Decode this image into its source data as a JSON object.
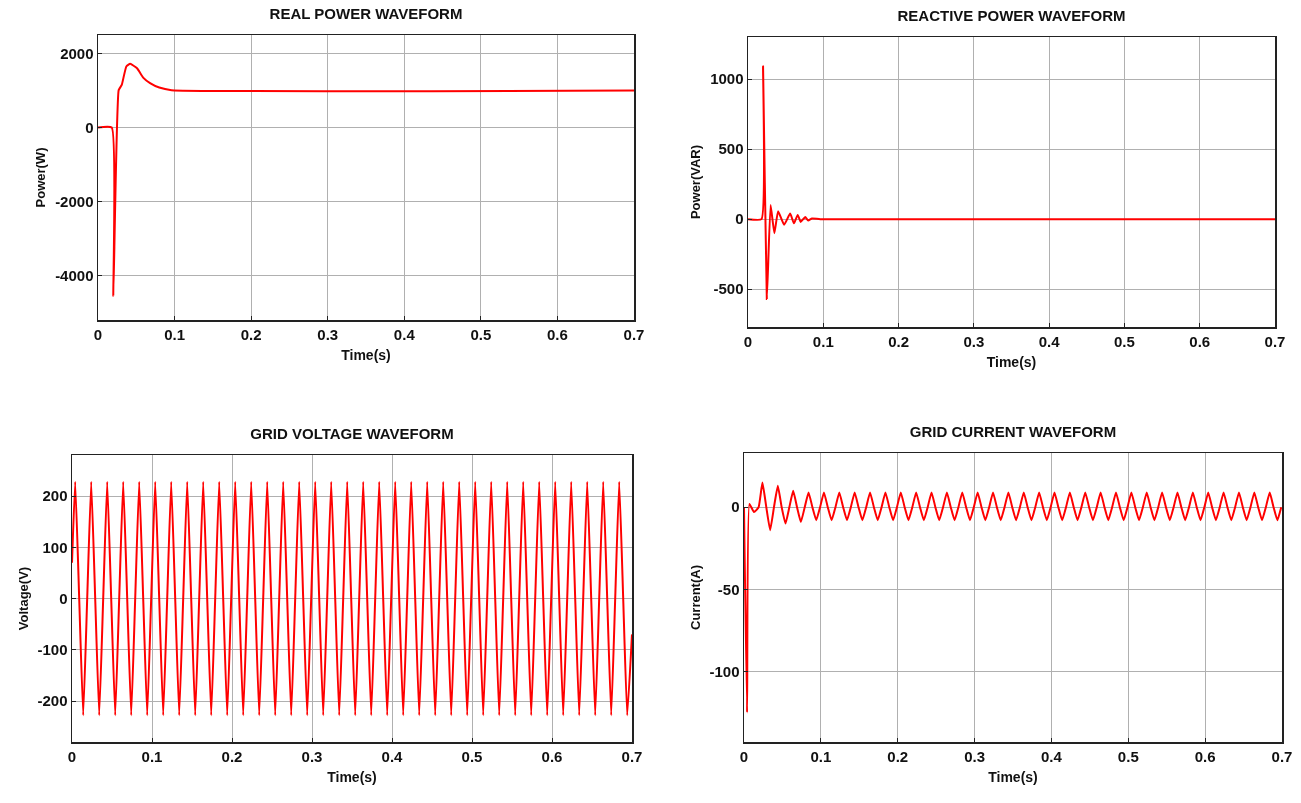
{
  "chart_data": [
    {
      "type": "line",
      "title": "REAL POWER WAVEFORM",
      "xlabel": "Time(s)",
      "ylabel": "Power(W)",
      "x": [
        0,
        0.018,
        0.02,
        0.027,
        0.031,
        0.037,
        0.042,
        0.051,
        0.059,
        0.068,
        0.08,
        0.096,
        0.7
      ],
      "series": [
        {
          "color": "#ff0000",
          "values": [
            0,
            0,
            -4550,
            1010,
            1150,
            1650,
            1720,
            1600,
            1350,
            1200,
            1080,
            1010,
            1000
          ]
        }
      ],
      "xlim": [
        0,
        0.7
      ],
      "xticks": [
        0,
        0.1,
        0.2,
        0.3,
        0.4,
        0.5,
        0.6,
        0.7
      ],
      "ylim": [
        -5200,
        2500
      ],
      "yticks": [
        -4000,
        -2000,
        0,
        2000
      ],
      "grid": true
    },
    {
      "type": "line",
      "title": "REACTIVE POWER WAVEFORM",
      "xlabel": "Time(s)",
      "ylabel": "Power(VAR)",
      "x": [
        0,
        0.018,
        0.02,
        0.025,
        0.03,
        0.035,
        0.04,
        0.048,
        0.056,
        0.061,
        0.066,
        0.07,
        0.076,
        0.08,
        0.085,
        0.096,
        0.7
      ],
      "series": [
        {
          "color": "#ff0000",
          "values": [
            0,
            0,
            1090,
            -570,
            100,
            -100,
            57,
            -40,
            40,
            -30,
            30,
            -20,
            15,
            -10,
            5,
            0,
            0
          ]
        }
      ],
      "xlim": [
        0,
        0.7
      ],
      "xticks": [
        0,
        0.1,
        0.2,
        0.3,
        0.4,
        0.5,
        0.6,
        0.7
      ],
      "ylim": [
        -770,
        1300
      ],
      "yticks": [
        -500,
        0,
        500,
        1000
      ],
      "grid": true
    },
    {
      "type": "line",
      "title": "GRID VOLTAGE WAVEFORM",
      "xlabel": "Time(s)",
      "ylabel": "Voltage(V)",
      "x": [
        0,
        0.004,
        0.009,
        0.014,
        0.019,
        0.024,
        0.029,
        0.034,
        0.039,
        0.044,
        0.049,
        0.054,
        0.059,
        0.064,
        0.069,
        0.074,
        0.079,
        0.084,
        0.089,
        0.094,
        0.099,
        0.104,
        0.109,
        0.114,
        0.119,
        0.124,
        0.129,
        0.134,
        0.139,
        0.144,
        0.149,
        0.154,
        0.159,
        0.164,
        0.169,
        0.174,
        0.179,
        0.184,
        0.189,
        0.194,
        0.199,
        0.204,
        0.209,
        0.214,
        0.219,
        0.224,
        0.229,
        0.234,
        0.239,
        0.244,
        0.249,
        0.254,
        0.259,
        0.264,
        0.269,
        0.274,
        0.279,
        0.284,
        0.289,
        0.294,
        0.299,
        0.304,
        0.309,
        0.314,
        0.319,
        0.324,
        0.329,
        0.334,
        0.339,
        0.344,
        0.349,
        0.354,
        0.359,
        0.364,
        0.369,
        0.374,
        0.379,
        0.384,
        0.389,
        0.394,
        0.399,
        0.404,
        0.409,
        0.414,
        0.419,
        0.424,
        0.429,
        0.434,
        0.439,
        0.444,
        0.449,
        0.454,
        0.459,
        0.464,
        0.469,
        0.474,
        0.479,
        0.484,
        0.489,
        0.494,
        0.499,
        0.504,
        0.509,
        0.514,
        0.519,
        0.524,
        0.529,
        0.534,
        0.539,
        0.544,
        0.549,
        0.554,
        0.559,
        0.564,
        0.569,
        0.574,
        0.579,
        0.584,
        0.589,
        0.594,
        0.599,
        0.604,
        0.609,
        0.614,
        0.619,
        0.624,
        0.629,
        0.634,
        0.639,
        0.644,
        0.649,
        0.654,
        0.659,
        0.664,
        0.669,
        0.674,
        0.679,
        0.684,
        0.689,
        0.694,
        0.7
      ],
      "series": [
        {
          "color": "#ff0000",
          "values": [
            70,
            228,
            0,
            -228,
            0,
            228,
            0,
            -228,
            0,
            228,
            0,
            -228,
            0,
            228,
            0,
            -228,
            0,
            228,
            0,
            -228,
            0,
            228,
            0,
            -228,
            0,
            228,
            0,
            -228,
            0,
            228,
            0,
            -228,
            0,
            228,
            0,
            -228,
            0,
            228,
            0,
            -228,
            0,
            228,
            0,
            -228,
            0,
            228,
            0,
            -228,
            0,
            228,
            0,
            -228,
            0,
            228,
            0,
            -228,
            0,
            228,
            0,
            -228,
            0,
            228,
            0,
            -228,
            0,
            228,
            0,
            -228,
            0,
            228,
            0,
            -228,
            0,
            228,
            0,
            -228,
            0,
            228,
            0,
            -228,
            0,
            228,
            0,
            -228,
            0,
            228,
            0,
            -228,
            0,
            228,
            0,
            -228,
            0,
            228,
            0,
            -228,
            0,
            228,
            0,
            -228,
            0,
            228,
            0,
            -228,
            0,
            228,
            0,
            -228,
            0,
            228,
            0,
            -228,
            0,
            228,
            0,
            -228,
            0,
            228,
            0,
            -228,
            0,
            228,
            0,
            -228,
            0,
            228,
            0,
            -228,
            0,
            228,
            0,
            -228,
            0,
            228,
            0,
            -228,
            0,
            228,
            0,
            -228,
            -70
          ]
        }
      ],
      "xlim": [
        0,
        0.7
      ],
      "xticks": [
        0,
        0.1,
        0.2,
        0.3,
        0.4,
        0.5,
        0.6,
        0.7
      ],
      "ylim": [
        -280,
        280
      ],
      "yticks": [
        -200,
        -100,
        0,
        100,
        200
      ],
      "grid": true
    },
    {
      "type": "line",
      "title": "GRID CURRENT WAVEFORM",
      "xlabel": "Time(s)",
      "ylabel": "Current(A)",
      "x": [
        0,
        0.004,
        0.007,
        0.013,
        0.019,
        0.024,
        0.029,
        0.034,
        0.039,
        0.044,
        0.049,
        0.054,
        0.059,
        0.064,
        0.069,
        0.074,
        0.079,
        0.084,
        0.089,
        0.094,
        0.099,
        0.104,
        0.109,
        0.114,
        0.119,
        0.124,
        0.129,
        0.134,
        0.139,
        0.144,
        0.149,
        0.154,
        0.159,
        0.164,
        0.169,
        0.174,
        0.179,
        0.184,
        0.189,
        0.194,
        0.199,
        0.204,
        0.209,
        0.214,
        0.219,
        0.224,
        0.229,
        0.234,
        0.239,
        0.244,
        0.249,
        0.254,
        0.259,
        0.264,
        0.269,
        0.274,
        0.279,
        0.284,
        0.289,
        0.294,
        0.299,
        0.304,
        0.309,
        0.314,
        0.319,
        0.324,
        0.329,
        0.334,
        0.339,
        0.344,
        0.349,
        0.354,
        0.359,
        0.364,
        0.369,
        0.374,
        0.379,
        0.384,
        0.389,
        0.394,
        0.399,
        0.404,
        0.409,
        0.414,
        0.419,
        0.424,
        0.429,
        0.434,
        0.439,
        0.444,
        0.449,
        0.454,
        0.459,
        0.464,
        0.469,
        0.474,
        0.479,
        0.484,
        0.489,
        0.494,
        0.499,
        0.504,
        0.509,
        0.514,
        0.519,
        0.524,
        0.529,
        0.534,
        0.539,
        0.544,
        0.549,
        0.554,
        0.559,
        0.564,
        0.569,
        0.574,
        0.579,
        0.584,
        0.589,
        0.594,
        0.599,
        0.604,
        0.609,
        0.614,
        0.619,
        0.624,
        0.629,
        0.634,
        0.639,
        0.644,
        0.649,
        0.654,
        0.659,
        0.664,
        0.669,
        0.674,
        0.679,
        0.684,
        0.689,
        0.694,
        0.699
      ],
      "series": [
        {
          "color": "#ff0000",
          "values": [
            0,
            -125,
            2,
            -3,
            0,
            15,
            0,
            -14,
            0,
            13,
            0,
            -10,
            0,
            10,
            0,
            -9,
            0,
            9,
            0,
            -8,
            0,
            9,
            0,
            -8,
            0,
            9,
            0,
            -8,
            0,
            9,
            0,
            -8,
            0,
            9,
            0,
            -8,
            0,
            9,
            0,
            -8,
            0,
            9,
            0,
            -8,
            0,
            9,
            0,
            -8,
            0,
            9,
            0,
            -8,
            0,
            9,
            0,
            -8,
            0,
            9,
            0,
            -8,
            0,
            9,
            0,
            -8,
            0,
            9,
            0,
            -8,
            0,
            9,
            0,
            -8,
            0,
            9,
            0,
            -8,
            0,
            9,
            0,
            -8,
            0,
            9,
            0,
            -8,
            0,
            9,
            0,
            -8,
            0,
            9,
            0,
            -8,
            0,
            9,
            0,
            -8,
            0,
            9,
            0,
            -8,
            0,
            9,
            0,
            -8,
            0,
            9,
            0,
            -8,
            0,
            9,
            0,
            -8,
            0,
            9,
            0,
            -8,
            0,
            9,
            0,
            -8,
            0,
            9,
            0,
            -8,
            0,
            9,
            0,
            -8,
            0,
            9,
            0,
            -8,
            0,
            9,
            0,
            -8,
            0,
            9,
            0,
            -8,
            0
          ]
        }
      ],
      "xlim": [
        0,
        0.7
      ],
      "xticks": [
        0,
        0.1,
        0.2,
        0.3,
        0.4,
        0.5,
        0.6,
        0.7
      ],
      "ylim": [
        -143,
        33
      ],
      "yticks": [
        -100,
        -50,
        0
      ],
      "grid": true
    }
  ]
}
